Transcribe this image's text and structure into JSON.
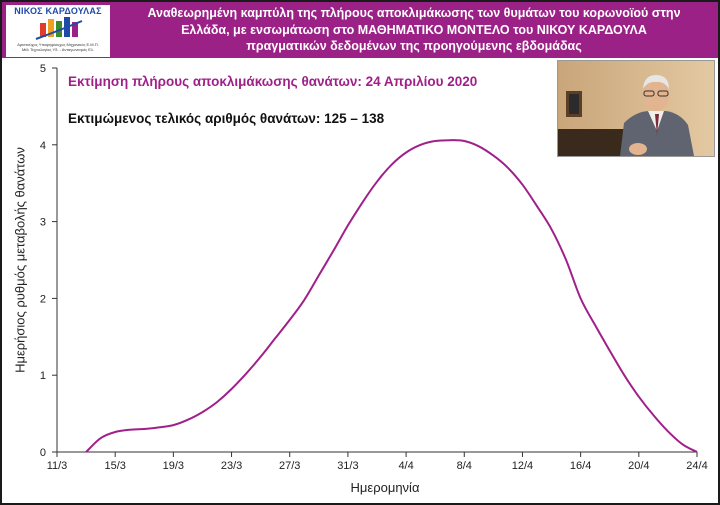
{
  "header": {
    "logo_title": "ΝΙΚΟΣ ΚΑΡΔΟΥΛΑΣ",
    "logo_sub1": "Αριστούχος Υποψηφίουχος Μηχανικός Ε.Μ.Π.",
    "logo_sub2": "Μέλ Τεχνολογίας Υδ. - Ανταγωνισμός Ελ.",
    "line1": "Αναθεωρημένη καμπύλη της πλήρους αποκλιμάκωσης των θυμάτων του κορωνοϊού στην",
    "line2": "Ελλάδα, με ενσωμάτωση στο ΜΑΘΗΜΑΤΙΚΟ ΜΟΝΤΕΛΟ του ΝΙΚΟΥ ΚΑΡΔΟΥΛΑ",
    "line3": "πραγματικών δεδομένων της προηγούμενης εβδομάδας"
  },
  "colors": {
    "header_bg": "#9c2187",
    "curve": "#a0208a",
    "title": "#a0208a"
  },
  "chart_data": {
    "type": "line",
    "title": "Εκτίμηση πλήρους αποκλιμάκωσης θανάτων: 24 Απριλίου 2020",
    "subtitle": "Εκτιμώμενος τελικός αριθμός θανάτων: 125 – 138",
    "xlabel": "Ημερομηνία",
    "ylabel": "Ημερήσιος ρυθμός μεταβολής θανάτων",
    "x_ticks": [
      "11/3",
      "15/3",
      "19/3",
      "23/3",
      "27/3",
      "31/3",
      "4/4",
      "8/4",
      "12/4",
      "16/4",
      "20/4",
      "24/4"
    ],
    "y_ticks": [
      "0",
      "1",
      "2",
      "3",
      "4",
      "5"
    ],
    "ylim": [
      0,
      5
    ],
    "grid": false,
    "series": [
      {
        "x": [
          "13/3",
          "14/3",
          "15/3",
          "16/3",
          "17/3",
          "18/3",
          "19/3",
          "20/3",
          "21/3",
          "22/3",
          "23/3",
          "24/3",
          "25/3",
          "26/3",
          "27/3",
          "28/3",
          "29/3",
          "30/3",
          "31/3",
          "1/4",
          "2/4",
          "3/4",
          "4/4",
          "5/4",
          "6/4",
          "7/4",
          "8/4",
          "9/4",
          "10/4",
          "11/4",
          "12/4",
          "13/4",
          "14/4",
          "15/4",
          "16/4",
          "17/4",
          "18/4",
          "19/4",
          "20/4",
          "21/4",
          "22/4",
          "23/4",
          "24/4"
        ],
        "values": [
          0.0,
          0.18,
          0.26,
          0.29,
          0.3,
          0.32,
          0.35,
          0.42,
          0.52,
          0.65,
          0.82,
          1.02,
          1.24,
          1.48,
          1.72,
          1.98,
          2.3,
          2.62,
          2.95,
          3.25,
          3.52,
          3.74,
          3.9,
          4.0,
          4.05,
          4.06,
          4.05,
          3.98,
          3.86,
          3.7,
          3.48,
          3.2,
          2.9,
          2.5,
          2.0,
          1.65,
          1.32,
          1.0,
          0.72,
          0.48,
          0.27,
          0.1,
          0.0
        ]
      }
    ]
  }
}
